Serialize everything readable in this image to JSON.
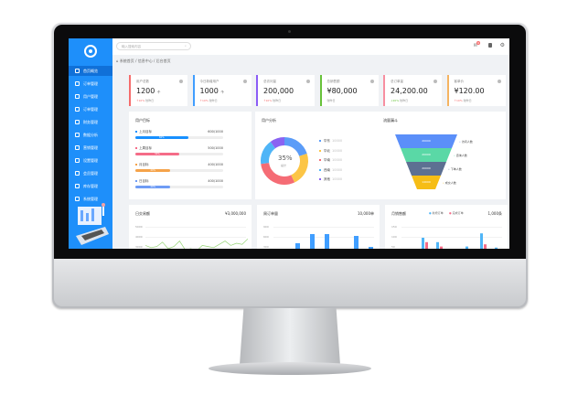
{
  "app": {
    "search_placeholder": "输入搜索内容",
    "breadcrumb": "系统首页 / 信息中心 / 后台首页"
  },
  "sidebar": {
    "items": [
      {
        "label": "首页概览",
        "icon": "home-icon"
      },
      {
        "label": "订单管理",
        "icon": "file-icon"
      },
      {
        "label": "用户管理",
        "icon": "user-icon"
      },
      {
        "label": "订单管理",
        "icon": "box-icon"
      },
      {
        "label": "财务管理",
        "icon": "wallet-icon"
      },
      {
        "label": "数据分析",
        "icon": "chart-icon"
      },
      {
        "label": "营销管理",
        "icon": "gift-icon"
      },
      {
        "label": "设置管理",
        "icon": "gear-icon"
      },
      {
        "label": "会员管理",
        "icon": "vip-icon"
      },
      {
        "label": "库存管理",
        "icon": "store-icon"
      },
      {
        "label": "系统管理",
        "icon": "monitor-icon"
      }
    ]
  },
  "topbar": {
    "badge": "6"
  },
  "cards": [
    {
      "title": "用户总数",
      "value": "1200",
      "unit": "个",
      "change": "↑10%",
      "note": "较昨日",
      "color": "#f56c6c"
    },
    {
      "title": "今日新增用户",
      "value": "1000",
      "unit": "个",
      "change": "↑10%",
      "note": "较昨日",
      "color": "#409eff"
    },
    {
      "title": "总访问量",
      "value": "200,000",
      "unit": "",
      "change": "↑10%",
      "note": "较昨日",
      "color": "#8b5cf6"
    },
    {
      "title": "总销售额",
      "value": "¥80,000",
      "unit": "",
      "change": "",
      "note": "较昨日",
      "color": "#67c23a"
    },
    {
      "title": "总订单量",
      "value": "24,200.00",
      "unit": "",
      "change": "↓20%",
      "note": "较昨日",
      "color": "#f78fa0"
    },
    {
      "title": "客单价",
      "value": "¥120.00",
      "unit": "",
      "change": "↑10%",
      "note": "较昨日",
      "color": "#f5b461"
    }
  ],
  "goals": {
    "title": "用户目标",
    "items": [
      {
        "label": "上月目标",
        "value": "600/1000",
        "pct": 60,
        "color": "#1890ff"
      },
      {
        "label": "上周目标",
        "value": "500/1000",
        "pct": 50,
        "color": "#f56c88"
      },
      {
        "label": "月目标",
        "value": "400/1000",
        "pct": 40,
        "color": "#f5a34a"
      },
      {
        "label": "日目标",
        "value": "400/1000",
        "pct": 40,
        "color": "#6f9cf5"
      }
    ]
  },
  "donut": {
    "title": "用户分析",
    "center": "35%",
    "center_sub": "总计",
    "items": [
      {
        "label": "华东",
        "value": "10000",
        "color": "#5b9cf8"
      },
      {
        "label": "华北",
        "value": "10000",
        "color": "#fcc546"
      },
      {
        "label": "华南",
        "value": "10000",
        "color": "#f56c75"
      },
      {
        "label": "西南",
        "value": "10000",
        "color": "#4fb5f7"
      },
      {
        "label": "其他",
        "value": "10000",
        "color": "#8a63f2"
      }
    ]
  },
  "funnel": {
    "title": "流量漏斗",
    "items": [
      {
        "value": "20000",
        "label": "访问人数",
        "color": "#5b8ff9"
      },
      {
        "value": "20000",
        "label": "咨询人数",
        "color": "#5ad8a6"
      },
      {
        "value": "20000",
        "label": "下单人数",
        "color": "#5d7092"
      },
      {
        "value": "14000",
        "label": "成交人数",
        "color": "#f6bd16"
      }
    ]
  },
  "chart_data": [
    {
      "type": "line",
      "title": "日交易额",
      "total": "¥3,000,000",
      "yticks": [
        "5000",
        "4000",
        "3000"
      ],
      "values": [
        3300,
        3100,
        3200,
        3600,
        3000,
        3200,
        3700,
        2900,
        3000,
        2800,
        3300,
        3200,
        3100,
        3400,
        3700,
        3300,
        3500,
        3400,
        3900
      ],
      "color": "#95d475"
    },
    {
      "type": "bar",
      "title": "周订单量",
      "total": "10,000单",
      "yticks": [
        "900",
        "600",
        "300"
      ],
      "values": [
        200,
        450,
        700,
        700,
        300,
        650,
        350
      ],
      "color": "#409eff"
    },
    {
      "type": "bar",
      "title": "月销售额",
      "total": "1,000条",
      "yticks": [
        "150",
        "100",
        "50"
      ],
      "legend": [
        "新增订单",
        "完成订单"
      ],
      "series": [
        {
          "name": "新增订单",
          "values": [
            0,
            100,
            80,
            0,
            60,
            120,
            55
          ],
          "color": "#4fb5f7"
        },
        {
          "name": "完成订单",
          "values": [
            40,
            80,
            60,
            40,
            40,
            70,
            20
          ],
          "color": "#f56c88"
        }
      ]
    }
  ]
}
